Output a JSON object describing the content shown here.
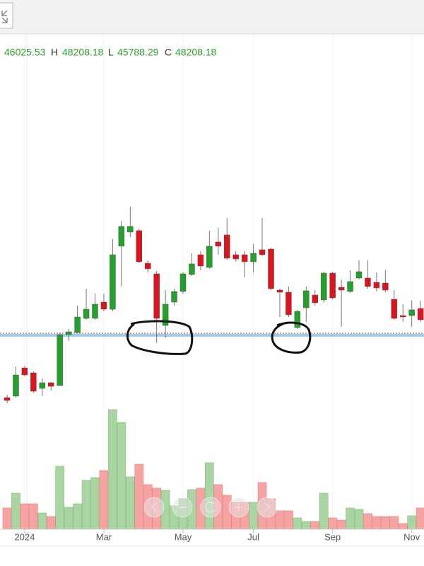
{
  "chart_data": {
    "type": "candlestick",
    "header": {
      "open": 46025.53,
      "high_label": "H",
      "high": 48208.18,
      "low_label": "L",
      "low": 45788.29,
      "close_label": "C",
      "close": 48208.18
    },
    "categories": [
      null,
      null,
      "2024",
      null,
      null,
      null,
      null,
      null,
      null,
      null,
      null,
      "Mar",
      null,
      null,
      null,
      null,
      null,
      null,
      null,
      null,
      "May",
      null,
      null,
      null,
      null,
      null,
      null,
      null,
      "Jul",
      null,
      null,
      null,
      null,
      null,
      null,
      null,
      null,
      "Sep",
      null,
      null,
      null,
      null,
      null,
      null,
      null,
      null,
      "Nov",
      null
    ],
    "open": [
      36900,
      37000,
      39000,
      38650,
      37550,
      37950,
      37750,
      41350,
      41500,
      42500,
      42500,
      43650,
      43150,
      47600,
      48600,
      48700,
      46400,
      45650,
      42000,
      43650,
      44400,
      45600,
      47000,
      46100,
      47900,
      48400,
      47000,
      47000,
      46500,
      47350,
      47400,
      44500,
      44350,
      41850,
      43250,
      44150,
      43800,
      45700,
      44700,
      44400,
      45350,
      45350,
      45050,
      45000,
      43850,
      42700,
      42700,
      43200
    ],
    "high": [
      37100,
      39100,
      39150,
      38750,
      38250,
      38000,
      41500,
      41750,
      43400,
      44600,
      44250,
      44250,
      48100,
      49400,
      50400,
      48850,
      46600,
      45850,
      44500,
      44600,
      45750,
      47100,
      47250,
      48700,
      48900,
      49600,
      47250,
      47250,
      47750,
      49600,
      47500,
      44600,
      44750,
      43100,
      44750,
      44500,
      45800,
      45800,
      45250,
      45900,
      46600,
      46600,
      45750,
      45900,
      44500,
      43500,
      43750,
      43750
    ],
    "low": [
      36500,
      36900,
      38400,
      37250,
      37000,
      37400,
      37750,
      40900,
      41500,
      42400,
      42400,
      43000,
      43000,
      44750,
      48250,
      46400,
      45750,
      40750,
      41100,
      43400,
      44250,
      45500,
      45900,
      46000,
      47000,
      46650,
      46500,
      45400,
      45750,
      46900,
      44500,
      42600,
      42600,
      41750,
      42250,
      43400,
      43600,
      43850,
      41900,
      44300,
      45250,
      44600,
      44400,
      44350,
      42400,
      42250,
      41900,
      42250
    ],
    "close": [
      36700,
      38500,
      38500,
      37350,
      37950,
      37700,
      41350,
      41550,
      42600,
      43150,
      43500,
      43150,
      47000,
      49000,
      49000,
      46500,
      46000,
      42500,
      43500,
      44400,
      45650,
      46350,
      46200,
      47600,
      47600,
      46750,
      46700,
      46500,
      47100,
      47000,
      44600,
      44350,
      42750,
      43000,
      44450,
      43600,
      45700,
      43950,
      44500,
      45100,
      45800,
      44750,
      44650,
      44500,
      42500,
      42600,
      43100,
      42400
    ],
    "volume": [
      30,
      51,
      36,
      36,
      23,
      18,
      89,
      31,
      36,
      69,
      73,
      83,
      169,
      151,
      74,
      92,
      63,
      58,
      55,
      33,
      43,
      56,
      58,
      94,
      63,
      48,
      38,
      38,
      38,
      66,
      43,
      26,
      26,
      16,
      11,
      11,
      51,
      16,
      13,
      30,
      28,
      22,
      18,
      18,
      18,
      8,
      19,
      30
    ],
    "ylim": [
      36000,
      62000
    ],
    "volume_lim": [
      0,
      200
    ],
    "up_color": "#22a22a",
    "down_color": "#e0131d",
    "up_volume_color": "#a8d5a2",
    "down_volume_color": "#f6a3a3",
    "header_color": "#2aa12a",
    "support_lines": [
      {
        "value": 41300,
        "color": "#9fcdea"
      },
      {
        "value": 41450,
        "color": "#c0392b"
      }
    ]
  }
}
